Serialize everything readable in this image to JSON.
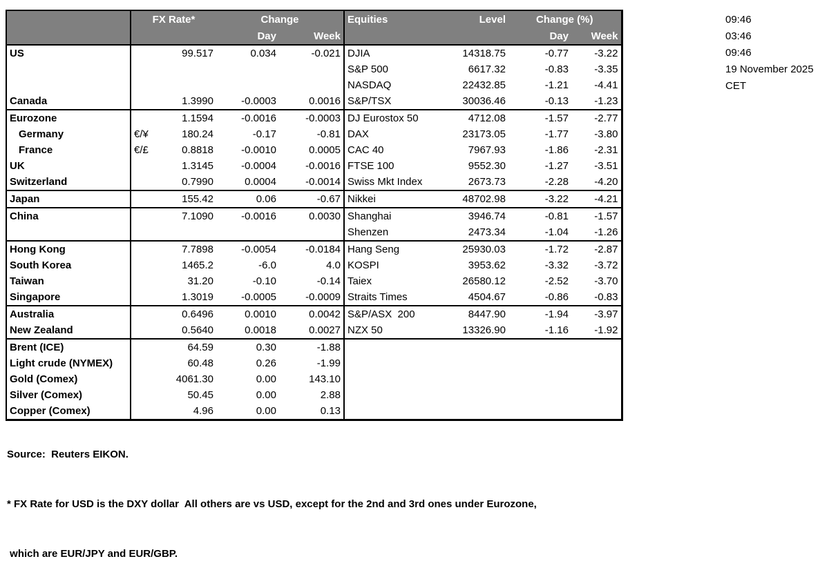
{
  "colors": {
    "header_bg": "#808080",
    "header_text": "#ffffff",
    "border": "#000000",
    "page_bg": "#ffffff",
    "text": "#000000"
  },
  "table": {
    "headers": {
      "fx_rate": "FX Rate*",
      "change": "Change",
      "day": "Day",
      "week": "Week",
      "equities": "Equities",
      "level": "Level",
      "change_pct": "Change (%)"
    },
    "rows": [
      {
        "label": "US",
        "pair": "",
        "fx": "99.517",
        "fx_day": "0.034",
        "fx_week": "-0.021",
        "eq": "DJIA",
        "level": "14318.75",
        "eq_day": "-0.77",
        "eq_week": "-3.22"
      },
      {
        "label": "",
        "pair": "",
        "fx": "",
        "fx_day": "",
        "fx_week": "",
        "eq": "S&P 500",
        "level": "6617.32",
        "eq_day": "-0.83",
        "eq_week": "-3.35"
      },
      {
        "label": "",
        "pair": "",
        "fx": "",
        "fx_day": "",
        "fx_week": "",
        "eq": "NASDAQ",
        "level": "22432.85",
        "eq_day": "-1.21",
        "eq_week": "-4.41"
      },
      {
        "label": "Canada",
        "pair": "",
        "fx": "1.3990",
        "fx_day": "-0.0003",
        "fx_week": "0.0016",
        "eq": "S&P/TSX",
        "level": "30036.46",
        "eq_day": "-0.13",
        "eq_week": "-1.23",
        "group_end": true
      },
      {
        "label": "Eurozone",
        "pair": "",
        "fx": "1.1594",
        "fx_day": "-0.0016",
        "fx_week": "-0.0003",
        "eq": "DJ Eurostox 50",
        "level": "4712.08",
        "eq_day": "-1.57",
        "eq_week": "-2.77"
      },
      {
        "label": "Germany",
        "pair": "€/¥",
        "fx": "180.24",
        "fx_day": "-0.17",
        "fx_week": "-0.81",
        "eq": "DAX",
        "level": "23173.05",
        "eq_day": "-1.77",
        "eq_week": "-3.80",
        "indent": true
      },
      {
        "label": "France",
        "pair": "€/£",
        "fx": "0.8818",
        "fx_day": "-0.0010",
        "fx_week": "0.0005",
        "eq": "CAC 40",
        "level": "7967.93",
        "eq_day": "-1.86",
        "eq_week": "-2.31",
        "indent": true
      },
      {
        "label": "UK",
        "pair": "",
        "fx": "1.3145",
        "fx_day": "-0.0004",
        "fx_week": "-0.0016",
        "eq": "FTSE 100",
        "level": "9552.30",
        "eq_day": "-1.27",
        "eq_week": "-3.51"
      },
      {
        "label": "Switzerland",
        "pair": "",
        "fx": "0.7990",
        "fx_day": "0.0004",
        "fx_week": "-0.0014",
        "eq": "Swiss Mkt Index",
        "level": "2673.73",
        "eq_day": "-2.28",
        "eq_week": "-4.20",
        "group_end": true
      },
      {
        "label": "Japan",
        "pair": "",
        "fx": "155.42",
        "fx_day": "0.06",
        "fx_week": "-0.67",
        "eq": "Nikkei",
        "level": "48702.98",
        "eq_day": "-3.22",
        "eq_week": "-4.21",
        "group_end": true
      },
      {
        "label": "China",
        "pair": "",
        "fx": "7.1090",
        "fx_day": "-0.0016",
        "fx_week": "0.0030",
        "eq": "Shanghai",
        "level": "3946.74",
        "eq_day": "-0.81",
        "eq_week": "-1.57"
      },
      {
        "label": "",
        "pair": "",
        "fx": "",
        "fx_day": "",
        "fx_week": "",
        "eq": "Shenzen",
        "level": "2473.34",
        "eq_day": "-1.04",
        "eq_week": "-1.26",
        "group_end": true
      },
      {
        "label": "Hong Kong",
        "pair": "",
        "fx": "7.7898",
        "fx_day": "-0.0054",
        "fx_week": "-0.0184",
        "eq": "Hang Seng",
        "level": "25930.03",
        "eq_day": "-1.72",
        "eq_week": "-2.87"
      },
      {
        "label": "South Korea",
        "pair": "",
        "fx": "1465.2",
        "fx_day": "-6.0",
        "fx_week": "4.0",
        "eq": "KOSPI",
        "level": "3953.62",
        "eq_day": "-3.32",
        "eq_week": "-3.72"
      },
      {
        "label": "Taiwan",
        "pair": "",
        "fx": "31.20",
        "fx_day": "-0.10",
        "fx_week": "-0.14",
        "eq": "Taiex",
        "level": "26580.12",
        "eq_day": "-2.52",
        "eq_week": "-3.70"
      },
      {
        "label": "Singapore",
        "pair": "",
        "fx": "1.3019",
        "fx_day": "-0.0005",
        "fx_week": "-0.0009",
        "eq": "Straits Times",
        "level": "4504.67",
        "eq_day": "-0.86",
        "eq_week": "-0.83",
        "group_end": true
      },
      {
        "label": "Australia",
        "pair": "",
        "fx": "0.6496",
        "fx_day": "0.0010",
        "fx_week": "0.0042",
        "eq": "S&P/ASX  200",
        "level": "8447.90",
        "eq_day": "-1.94",
        "eq_week": "-3.97"
      },
      {
        "label": "New Zealand",
        "pair": "",
        "fx": "0.5640",
        "fx_day": "0.0018",
        "fx_week": "0.0027",
        "eq": "NZX 50",
        "level": "13326.90",
        "eq_day": "-1.16",
        "eq_week": "-1.92",
        "group_end": true
      },
      {
        "label": "Brent (ICE)",
        "pair": "",
        "fx": "64.59",
        "fx_day": "0.30",
        "fx_week": "-1.88",
        "eq": "",
        "level": "",
        "eq_day": "",
        "eq_week": ""
      },
      {
        "label": "Light crude (NYMEX)",
        "pair": "",
        "fx": "60.48",
        "fx_day": "0.26",
        "fx_week": "-1.99",
        "eq": "",
        "level": "",
        "eq_day": "",
        "eq_week": ""
      },
      {
        "label": "Gold (Comex)",
        "pair": "",
        "fx": "4061.30",
        "fx_day": "0.00",
        "fx_week": "143.10",
        "eq": "",
        "level": "",
        "eq_day": "",
        "eq_week": ""
      },
      {
        "label": "Silver (Comex)",
        "pair": "",
        "fx": "50.45",
        "fx_day": "0.00",
        "fx_week": "2.88",
        "eq": "",
        "level": "",
        "eq_day": "",
        "eq_week": ""
      },
      {
        "label": "Copper (Comex)",
        "pair": "",
        "fx": "4.96",
        "fx_day": "0.00",
        "fx_week": "0.13",
        "eq": "",
        "level": "",
        "eq_day": "",
        "eq_week": ""
      }
    ]
  },
  "timestamps": {
    "lines": [
      "09:46",
      "03:46",
      "09:46",
      "19 November 2025",
      "CET"
    ]
  },
  "footer": {
    "source": "Source:  Reuters EIKON.",
    "footnote_line1": "* FX Rate for USD is the DXY dollar  All others are vs USD, except for the 2nd and 3rd ones under Eurozone,",
    "footnote_line2": " which are EUR/JPY and EUR/GBP."
  }
}
